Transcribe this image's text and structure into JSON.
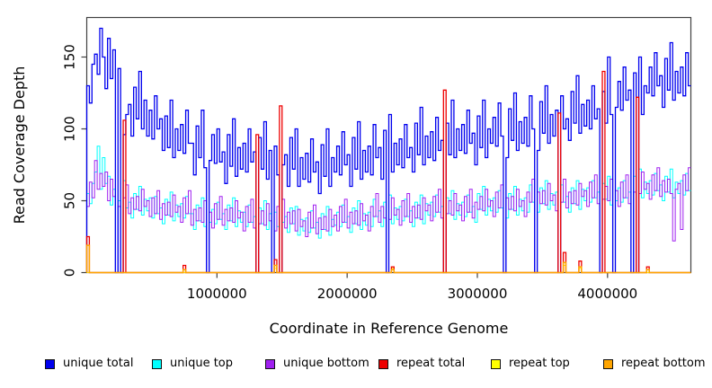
{
  "figure": {
    "background": "#FFFFFF",
    "box_color": "#404040",
    "text_color": "#000000"
  },
  "legend": {
    "items": [
      {
        "label": "unique total",
        "color": "#0000EE"
      },
      {
        "label": "unique top",
        "color": "#00FFFF"
      },
      {
        "label": "unique bottom",
        "color": "#A020F0"
      },
      {
        "label": "repeat total",
        "color": "#EE0000"
      },
      {
        "label": "repeat top",
        "color": "#FFFF00"
      },
      {
        "label": "repeat bottom",
        "color": "#FFA500"
      }
    ]
  },
  "chart_data": {
    "type": "line",
    "step_interpolation": true,
    "title": "",
    "xlabel": "Coordinate in Reference Genome",
    "ylabel": "Read Coverage Depth",
    "xlim": [
      0,
      4640000
    ],
    "ylim": [
      0,
      177
    ],
    "x_ticks": [
      1000000,
      2000000,
      3000000,
      4000000
    ],
    "y_ticks": [
      0,
      50,
      100,
      150
    ],
    "grid": false,
    "legend_position": "bottom",
    "window_size_bp": 20000,
    "n_windows": 232,
    "gap_windows": [
      11,
      13,
      46,
      65,
      71,
      74,
      115,
      137,
      160,
      172,
      181,
      197,
      202,
      209,
      211
    ],
    "draw_order": [
      "unique top",
      "unique bottom",
      "unique total",
      "repeat top",
      "repeat total",
      "repeat bottom"
    ],
    "series": [
      {
        "name": "unique total",
        "color": "#0000EE",
        "line_width": 1.3,
        "values": [
          130,
          118,
          145,
          152,
          138,
          170,
          150,
          128,
          163,
          135,
          155,
          0,
          142,
          0,
          96,
          110,
          117,
          95,
          129,
          107,
          140,
          100,
          120,
          95,
          113,
          93,
          123,
          100,
          107,
          85,
          109,
          87,
          120,
          80,
          100,
          85,
          103,
          83,
          113,
          90,
          90,
          68,
          102,
          80,
          113,
          73,
          0,
          78,
          96,
          76,
          100,
          77,
          84,
          62,
          96,
          74,
          107,
          67,
          87,
          72,
          90,
          70,
          100,
          77,
          84,
          0,
          94,
          72,
          105,
          65,
          85,
          0,
          88,
          68,
          0,
          75,
          82,
          60,
          94,
          72,
          100,
          60,
          80,
          65,
          83,
          63,
          93,
          70,
          77,
          55,
          89,
          67,
          100,
          60,
          80,
          70,
          88,
          68,
          98,
          75,
          82,
          60,
          94,
          72,
          105,
          65,
          85,
          70,
          88,
          68,
          103,
          80,
          87,
          65,
          99,
          0,
          110,
          70,
          90,
          75,
          93,
          73,
          103,
          80,
          87,
          70,
          104,
          82,
          115,
          75,
          95,
          80,
          98,
          78,
          108,
          85,
          92,
          0,
          104,
          82,
          120,
          80,
          100,
          85,
          103,
          83,
          113,
          90,
          97,
          75,
          109,
          87,
          120,
          80,
          100,
          90,
          108,
          88,
          118,
          95,
          0,
          80,
          114,
          92,
          125,
          85,
          105,
          90,
          108,
          88,
          123,
          100,
          0,
          85,
          119,
          97,
          130,
          90,
          110,
          95,
          113,
          0,
          123,
          100,
          107,
          92,
          126,
          104,
          137,
          97,
          117,
          102,
          120,
          100,
          130,
          107,
          114,
          0,
          126,
          104,
          150,
          110,
          0,
          115,
          133,
          113,
          143,
          120,
          127,
          0,
          139,
          0,
          150,
          110,
          130,
          125,
          143,
          123,
          153,
          130,
          137,
          115,
          149,
          127,
          160,
          120,
          140,
          125,
          143,
          123,
          153,
          130
        ]
      },
      {
        "name": "unique top",
        "color": "#00FFFF",
        "line_width": 1.0,
        "values": [
          55,
          48,
          62,
          70,
          88,
          58,
          80,
          62,
          67,
          47,
          58,
          0,
          50,
          0,
          64,
          45,
          49,
          38,
          55,
          44,
          60,
          40,
          51,
          43,
          52,
          38,
          53,
          41,
          45,
          34,
          51,
          40,
          56,
          36,
          47,
          39,
          48,
          38,
          53,
          41,
          41,
          30,
          47,
          36,
          52,
          32,
          0,
          35,
          44,
          34,
          49,
          37,
          41,
          30,
          47,
          36,
          52,
          32,
          43,
          35,
          42,
          32,
          47,
          35,
          39,
          0,
          45,
          34,
          50,
          30,
          41,
          0,
          42,
          32,
          0,
          35,
          39,
          28,
          45,
          34,
          46,
          26,
          37,
          29,
          38,
          28,
          43,
          31,
          35,
          24,
          41,
          30,
          46,
          26,
          37,
          33,
          42,
          32,
          47,
          35,
          39,
          28,
          45,
          34,
          50,
          30,
          41,
          33,
          42,
          32,
          51,
          39,
          43,
          32,
          49,
          0,
          54,
          34,
          45,
          37,
          46,
          36,
          51,
          39,
          43,
          32,
          49,
          38,
          54,
          34,
          48,
          40,
          49,
          39,
          54,
          42,
          46,
          0,
          52,
          41,
          57,
          37,
          48,
          40,
          49,
          39,
          54,
          42,
          46,
          35,
          55,
          44,
          60,
          40,
          51,
          43,
          52,
          42,
          57,
          45,
          0,
          38,
          55,
          44,
          60,
          40,
          51,
          43,
          52,
          42,
          61,
          49,
          0,
          42,
          59,
          48,
          64,
          44,
          55,
          47,
          56,
          0,
          61,
          49,
          53,
          42,
          59,
          48,
          64,
          44,
          58,
          50,
          59,
          49,
          64,
          52,
          56,
          0,
          62,
          51,
          67,
          47,
          0,
          50,
          59,
          49,
          64,
          52,
          56,
          0,
          67,
          0,
          72,
          52,
          63,
          55,
          64,
          54,
          69,
          57,
          61,
          50,
          67,
          56,
          72,
          52,
          63,
          55,
          64,
          54,
          69,
          57
        ]
      },
      {
        "name": "unique bottom",
        "color": "#A020F0",
        "line_width": 1.0,
        "values": [
          46,
          63,
          52,
          78,
          58,
          69,
          60,
          70,
          50,
          65,
          53,
          0,
          46,
          0,
          52,
          61,
          41,
          52,
          44,
          53,
          43,
          58,
          46,
          50,
          39,
          52,
          41,
          57,
          37,
          48,
          40,
          49,
          39,
          54,
          42,
          46,
          35,
          52,
          41,
          57,
          33,
          44,
          36,
          45,
          35,
          50,
          0,
          42,
          31,
          48,
          37,
          53,
          33,
          44,
          36,
          45,
          35,
          50,
          38,
          42,
          29,
          46,
          35,
          51,
          31,
          0,
          34,
          43,
          33,
          48,
          36,
          0,
          29,
          46,
          0,
          51,
          31,
          42,
          34,
          43,
          29,
          44,
          32,
          36,
          25,
          42,
          31,
          47,
          27,
          38,
          30,
          39,
          29,
          44,
          32,
          40,
          29,
          46,
          35,
          51,
          31,
          42,
          34,
          43,
          33,
          48,
          36,
          40,
          29,
          46,
          39,
          55,
          35,
          46,
          38,
          0,
          37,
          52,
          40,
          44,
          33,
          50,
          39,
          55,
          35,
          46,
          38,
          47,
          37,
          52,
          43,
          47,
          36,
          53,
          42,
          58,
          38,
          0,
          41,
          50,
          40,
          55,
          43,
          47,
          36,
          53,
          42,
          58,
          38,
          49,
          44,
          53,
          43,
          58,
          46,
          50,
          39,
          56,
          45,
          61,
          0,
          52,
          44,
          53,
          43,
          58,
          46,
          50,
          39,
          56,
          49,
          65,
          0,
          56,
          48,
          57,
          47,
          62,
          50,
          54,
          43,
          0,
          49,
          65,
          45,
          56,
          48,
          57,
          47,
          62,
          53,
          57,
          46,
          63,
          52,
          68,
          48,
          0,
          51,
          60,
          50,
          65,
          0,
          57,
          46,
          63,
          52,
          68,
          48,
          0,
          56,
          0,
          55,
          70,
          58,
          62,
          51,
          68,
          57,
          73,
          53,
          64,
          56,
          65,
          55,
          22,
          58,
          62,
          30,
          68,
          57,
          73
        ]
      },
      {
        "name": "repeat total",
        "color": "#EE0000",
        "line_width": 1.3,
        "baseline": 0,
        "spikes": {
          "0": 25,
          "14": 106,
          "37": 5,
          "65": 96,
          "72": 9,
          "74": 116,
          "117": 4,
          "137": 127,
          "181": 111,
          "183": 14,
          "189": 8,
          "198": 140,
          "211": 122,
          "215": 4
        }
      },
      {
        "name": "repeat top",
        "color": "#FFFF00",
        "line_width": 1.0,
        "baseline": 0,
        "spikes": {
          "72": 3,
          "117": 3,
          "183": 5,
          "189": 3
        }
      },
      {
        "name": "repeat bottom",
        "color": "#FFA500",
        "line_width": 1.5,
        "baseline": 0,
        "spikes": {
          "0": 19,
          "37": 2,
          "72": 5,
          "117": 2,
          "183": 7,
          "189": 4,
          "215": 2
        }
      }
    ]
  }
}
